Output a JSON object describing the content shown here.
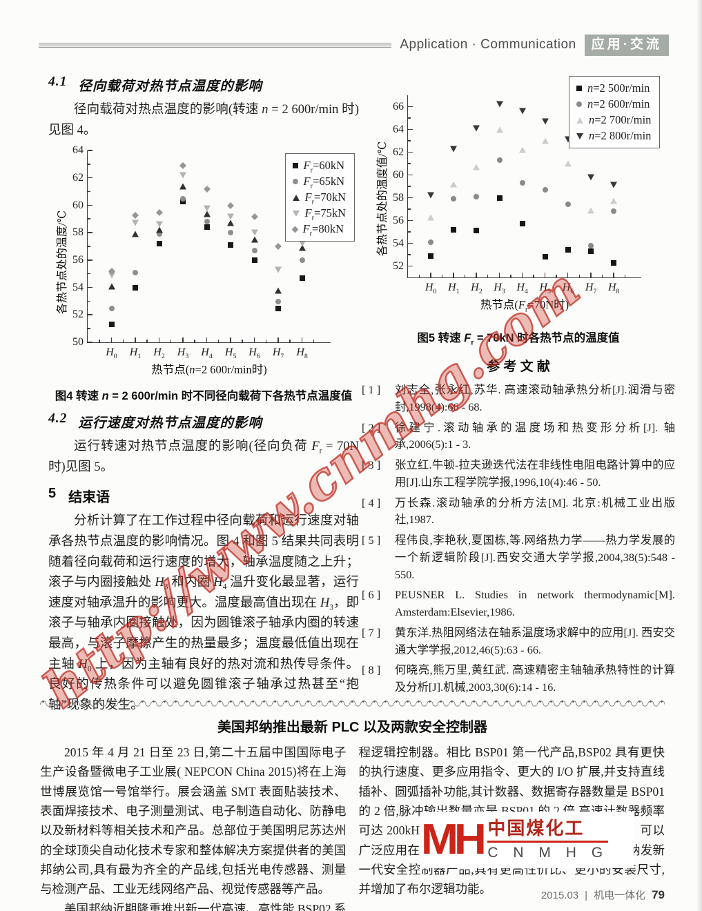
{
  "header": {
    "title": "Application · Communication",
    "badge": "应用·交流"
  },
  "sections": {
    "s41": {
      "num": "4.1",
      "title": "径向载荷对热节点温度的影响",
      "body": "径向载荷对热点温度的影响(转速 n = 2 600r/min 时)见图 4。"
    },
    "s42": {
      "num": "4.2",
      "title": "运行速度对热节点温度的影响",
      "body": "运行转速对热节点温度的影响(径向负荷 F_r = 70N 时)见图 5。"
    },
    "s5": {
      "num": "5",
      "title": "结束语",
      "body": "分析计算了在工作过程中径向载荷和运行速度对轴承各热节点温度的影响情况。图 4 和图 5 结果共同表明随着径向载荷和运行速度的增大，轴承温度随之上升；滚子与内圈接触处 H_3 和内圈 H_4 温升变化最显著，运行速度对轴承温升的影响更大。温度最高值出现在 H_3，即滚子与轴承内圈接触处，因为圆锥滚子轴承内圈的转速最高，与滚子摩擦产生的热量最多；温度最低值出现在主轴 H_0 上，因为主轴有良好的热对流和热传导条件。良好的传热条件可以避免圆锥滚子轴承过热甚至“抱轴”现象的发生。"
    }
  },
  "chart_data": [
    {
      "type": "scatter",
      "caption": "图4  转速 n = 2 600r/min 时不同径向载荷下各热节点温度值",
      "xlabel": "热节点(n=2 600r/min时)",
      "ylabel": "各热节点处的温度/℃",
      "ylim": [
        50,
        64
      ],
      "yticks": [
        50,
        52,
        54,
        56,
        58,
        60,
        62,
        64
      ],
      "categories": [
        "H_0",
        "H_1",
        "H_2",
        "H_3",
        "H_4",
        "H_5",
        "H_6",
        "H_7",
        "H_8"
      ],
      "legend_position": "top-right",
      "grid": false,
      "series": [
        {
          "name": "F_r=60kN",
          "marker": "square",
          "color": "#181818",
          "values": [
            51.3,
            54.0,
            57.2,
            60.3,
            58.4,
            57.1,
            56.0,
            52.5,
            54.7
          ]
        },
        {
          "name": "F_r=65kN",
          "marker": "circle",
          "color": "#8e8e8e",
          "values": [
            52.5,
            55.1,
            57.9,
            60.5,
            58.8,
            58.0,
            56.7,
            53.0,
            56.0
          ]
        },
        {
          "name": "F_r=70kN",
          "marker": "triangle-up",
          "color": "#303030",
          "values": [
            54.1,
            57.9,
            58.2,
            61.4,
            59.4,
            58.7,
            57.5,
            53.8,
            56.9
          ]
        },
        {
          "name": "F_r=75kN",
          "marker": "triangle-down",
          "color": "#b3b3b3",
          "values": [
            54.9,
            58.7,
            58.6,
            62.2,
            59.8,
            59.2,
            58.0,
            55.3,
            57.2
          ]
        },
        {
          "name": "F_r=80kN",
          "marker": "diamond",
          "color": "#969696",
          "values": [
            55.2,
            59.3,
            59.5,
            62.9,
            61.2,
            60.0,
            59.2,
            57.0,
            57.7
          ]
        }
      ]
    },
    {
      "type": "scatter",
      "caption": "图5  转速 F_r = 70kN 时各热节点的温度值",
      "xlabel": "热节点(F_r=70N时)",
      "ylabel": "各热节点处的温度值/℃",
      "ylim": [
        51,
        67
      ],
      "yticks": [
        52,
        54,
        56,
        58,
        60,
        62,
        64,
        66
      ],
      "categories": [
        "H_0",
        "H_1",
        "H_2",
        "H_3",
        "H_4",
        "H_5",
        "H_6",
        "H_7",
        "H_8"
      ],
      "legend_position": "top-right",
      "grid": false,
      "series": [
        {
          "name": "n=2 500r/min",
          "marker": "square",
          "color": "#151515",
          "values": [
            52.9,
            55.2,
            55.1,
            58.0,
            55.7,
            52.8,
            53.4,
            53.3,
            52.3
          ]
        },
        {
          "name": "n=2 600r/min",
          "marker": "circle",
          "color": "#8a8a8a",
          "values": [
            54.1,
            57.9,
            58.1,
            61.3,
            59.3,
            58.7,
            57.4,
            53.8,
            56.8
          ]
        },
        {
          "name": "n=2 700r/min",
          "marker": "triangle-up",
          "color": "#cdcdcd",
          "values": [
            56.3,
            59.2,
            60.7,
            64.0,
            62.2,
            63.0,
            61.0,
            56.9,
            57.7
          ]
        },
        {
          "name": "n=2 800r/min",
          "marker": "triangle-down",
          "color": "#383838",
          "values": [
            58.2,
            62.3,
            64.1,
            66.2,
            65.6,
            64.7,
            63.1,
            59.8,
            59.1
          ]
        }
      ]
    }
  ],
  "references": {
    "heading": "参  考  文  献",
    "items": [
      {
        "label": "[ 1 ]",
        "text": "刘志全,张永红,苏华. 高速滚动轴承热分析[J].润滑与密封,1998(4):66 - 68."
      },
      {
        "label": "[ 2 ]",
        "text": "徐建宁.滚动轴承的温度场和热变形分析[J]. 轴承,2006(5):1 - 3."
      },
      {
        "label": "[ 3 ]",
        "text": "张立红.牛顿-拉夫逊迭代法在非线性电阻电路计算中的应用[J].山东工程学院学报,1996,10(4):46 - 50."
      },
      {
        "label": "[ 4 ]",
        "text": "万长森.滚动轴承的分析方法[M]. 北京:机械工业出版社,1987."
      },
      {
        "label": "[ 5 ]",
        "text": "程伟良,李艳秋,夏国栋,等.网络热力学——热力学发展的一个新逻辑阶段[J].西安交通大学学报,2004,38(5):548 - 550."
      },
      {
        "label": "[ 6 ]",
        "text": "PEUSNER L. Studies in network thermodynamic[M]. Amsterdam:Elsevier,1986."
      },
      {
        "label": "[ 7 ]",
        "text": "黄东洋.热阻网络法在轴系温度场求解中的应用[J]. 西安交通大学学报,2012,46(5):63 - 66."
      },
      {
        "label": "[ 8 ]",
        "text": "何晓亮,熊万里,黄红武. 高速精密主轴轴承热特性的计算及分析[J].机械,2003,30(6):14 - 16."
      }
    ]
  },
  "news": {
    "title": "美国邦纳推出最新 PLC 以及两款安全控制器",
    "left": [
      "2015 年 4 月 21 日至 23 日,第二十五届中国国际电子生产设备暨微电子工业展( NEPCON China 2015)将在上海世博展览馆一号馆举行。展会涵盖 SMT 表面贴装技术、表面焊接技术、电子测量测试、电子制造自动化、防静电以及新材料等相关技术和产品。总部位于美国明尼苏达州的全球顶尖自动化技术专家和整体解决方案提供者的美国邦纳公司,具有最为齐全的产品线,包括光电传感器、测量与检测产品、工业无线网络产品、视觉传感器等产品。",
      "美国邦纳近期隆重推出新一代高速、高性能 BSP02 系列可编"
    ],
    "right": [
      "程逻辑控制器。相比 BSP01 第一代产品,BSP02 具有更快的执行速度、更多应用指令、更大的 I/O 扩展,并支持直线插补、圆弧插补功能,其计数器、数据寄存器数量是 BSP01 的 2 倍,脉冲输出数量亦是 BSP01 的 2 倍,高速计数器频率可达 200kHz。该 PLC 还支持更多通信接口太网等。可以广泛应用在包装机械领域。另外,SC26 - 2 是美国邦纳发新一代安全控制器产品,具有更高性价比、更小的安装尺寸,并增加了布尔逻辑功能。"
    ]
  },
  "logo": {
    "mark": "MH",
    "cn": "中国煤化工",
    "en": "C N M H G",
    "color": "#cc2418"
  },
  "watermark": {
    "text": "http://www.cnmhg.com",
    "color": "#bf3326"
  },
  "footer": {
    "issue": "2015.03",
    "sep": "|",
    "journal": "机电一体化",
    "page": "79"
  }
}
